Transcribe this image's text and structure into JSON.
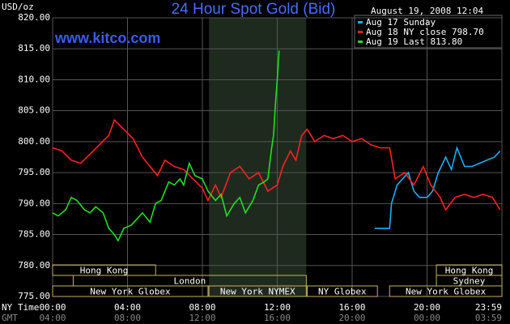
{
  "chart_data": {
    "type": "line",
    "title": "24 Hour Spot Gold (Bid)",
    "y_unit": "USD/oz",
    "site": "www.kitco.com",
    "timestamp": "August 19, 2008 12:04",
    "x_axis_label": "NY Time",
    "x2_axis_label": "GMT",
    "xlim": [
      0,
      24
    ],
    "ylim": [
      775,
      820
    ],
    "grid": true,
    "xticks": [
      {
        "value": 0,
        "label": "00:00"
      },
      {
        "value": 4,
        "label": "04:00"
      },
      {
        "value": 8,
        "label": "08:00"
      },
      {
        "value": 12,
        "label": "12:00"
      },
      {
        "value": 16,
        "label": "16:00"
      },
      {
        "value": 20,
        "label": "20:00"
      },
      {
        "value": 24,
        "label": "23:59"
      }
    ],
    "x2tick_labels": [
      "04:00",
      "08:00",
      "12:00",
      "16:00",
      "20:00",
      "00:00",
      "03:59"
    ],
    "yticks": [
      {
        "value": 775,
        "label": "775.00"
      },
      {
        "value": 780,
        "label": "780.00"
      },
      {
        "value": 785,
        "label": "785.00"
      },
      {
        "value": 790,
        "label": "790.00"
      },
      {
        "value": 795,
        "label": "795.00"
      },
      {
        "value": 800,
        "label": "800.00"
      },
      {
        "value": 805,
        "label": "805.00"
      },
      {
        "value": 810,
        "label": "810.00"
      },
      {
        "value": 815,
        "label": "815.00"
      },
      {
        "value": 820,
        "label": "820.00"
      }
    ],
    "session_rows": [
      [
        {
          "label": "Hong Kong",
          "start": 0,
          "end": 5.5
        },
        {
          "label": "Hong Kong",
          "start": 20.5,
          "end": 24
        }
      ],
      [
        {
          "label": "London",
          "start": 1.1,
          "end": 13.55
        },
        {
          "label": "Sydney",
          "start": 20.5,
          "end": 24
        }
      ],
      [
        {
          "label": "New York Globex",
          "start": 0,
          "end": 8.3
        },
        {
          "label": "New York NYMEX",
          "start": 8.35,
          "end": 13.55,
          "highlight": true
        },
        {
          "label": "NY Globex",
          "start": 13.6,
          "end": 17.35
        },
        {
          "label": "New York Globex",
          "start": 18,
          "end": 24
        }
      ]
    ],
    "series": [
      {
        "name": "Aug 17 Sunday",
        "color": "#1ab0f0",
        "x": [
          17.2,
          18,
          18.1,
          18.4,
          18.7,
          19,
          19.3,
          19.6,
          20,
          20.3,
          20.6,
          21,
          21.3,
          21.6,
          22,
          22.4,
          22.8,
          23.2,
          23.6,
          23.9
        ],
        "values": [
          786,
          786,
          790,
          793,
          794,
          795,
          792,
          791,
          791,
          792,
          795,
          797.5,
          795.5,
          799,
          796,
          796,
          796.5,
          797,
          797.5,
          798.5
        ]
      },
      {
        "name": "Aug 18 NY close 798.70",
        "color": "#ff2020",
        "x": [
          0,
          0.5,
          1,
          1.5,
          2,
          2.5,
          3,
          3.3,
          3.8,
          4.3,
          4.8,
          5.2,
          5.6,
          6,
          6.5,
          7,
          7.5,
          8,
          8.3,
          8.7,
          9,
          9.5,
          10,
          10.5,
          11,
          11.5,
          12,
          12.3,
          12.7,
          13,
          13.3,
          13.6,
          14,
          14.5,
          15,
          15.5,
          16,
          16.5,
          17,
          17.5,
          18,
          18.3,
          18.8,
          19.3,
          19.8,
          20.2,
          20.7,
          21,
          21.5,
          22,
          22.5,
          23,
          23.5,
          23.9
        ],
        "values": [
          799,
          798.5,
          797,
          796.5,
          798,
          799.5,
          801,
          803.5,
          802,
          800.5,
          797.5,
          796,
          794.5,
          797,
          796,
          795.5,
          794,
          792.5,
          790.5,
          793,
          791,
          795,
          796,
          794,
          795,
          792,
          793,
          796,
          798.5,
          797,
          801,
          802,
          800,
          801,
          800.5,
          801,
          800,
          800.5,
          799.5,
          799,
          799,
          794,
          795,
          793,
          796,
          793,
          791,
          789,
          791,
          791.5,
          791,
          791.5,
          791,
          789
        ]
      },
      {
        "name": "Aug 19 Last 813.80",
        "color": "#20e020",
        "x": [
          0,
          0.3,
          0.7,
          1,
          1.3,
          1.7,
          2,
          2.3,
          2.7,
          3,
          3.3,
          3.5,
          3.8,
          4.2,
          4.5,
          4.8,
          5.2,
          5.5,
          5.8,
          6.2,
          6.5,
          6.8,
          7,
          7.3,
          7.6,
          8,
          8.3,
          8.7,
          9,
          9.3,
          9.7,
          10,
          10.3,
          10.7,
          11,
          11.3,
          11.5,
          11.7,
          11.8,
          11.9,
          12,
          12.1
        ],
        "values": [
          788.5,
          788,
          789,
          791,
          790.5,
          789,
          788.5,
          789.5,
          788.5,
          786,
          785,
          784,
          786,
          786.5,
          787.5,
          788.5,
          787,
          790,
          790.5,
          793.5,
          793,
          794,
          793,
          796.5,
          794.5,
          794,
          792,
          790.5,
          791.5,
          788,
          790,
          791,
          788.5,
          790.5,
          793,
          793.5,
          794,
          799,
          801,
          806,
          810,
          814.7
        ]
      }
    ]
  }
}
